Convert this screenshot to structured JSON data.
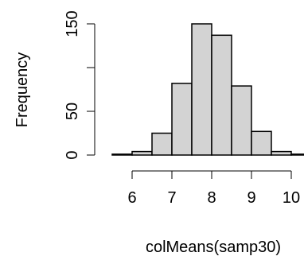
{
  "chart_data": {
    "type": "bar",
    "title": "",
    "xlabel": "colMeans(samp30)",
    "ylabel": "Frequency",
    "bins": [
      {
        "start": 5.5,
        "end": 6.0,
        "count": 1
      },
      {
        "start": 6.0,
        "end": 6.5,
        "count": 4
      },
      {
        "start": 6.5,
        "end": 7.0,
        "count": 25
      },
      {
        "start": 7.0,
        "end": 7.5,
        "count": 82
      },
      {
        "start": 7.5,
        "end": 8.0,
        "count": 150
      },
      {
        "start": 8.0,
        "end": 8.5,
        "count": 137
      },
      {
        "start": 8.5,
        "end": 9.0,
        "count": 79
      },
      {
        "start": 9.0,
        "end": 9.5,
        "count": 27
      },
      {
        "start": 9.5,
        "end": 10.0,
        "count": 4
      },
      {
        "start": 10.0,
        "end": 10.5,
        "count": 1
      }
    ],
    "xticks": [
      "6",
      "7",
      "8",
      "9",
      "10"
    ],
    "yticks": [
      "0",
      "50",
      "150"
    ],
    "xlim": [
      5.5,
      10.5
    ],
    "ylim": [
      0,
      150
    ],
    "bar_color": "#d3d3d3",
    "edge_color": "#000000",
    "grid": false,
    "legend": "none"
  }
}
